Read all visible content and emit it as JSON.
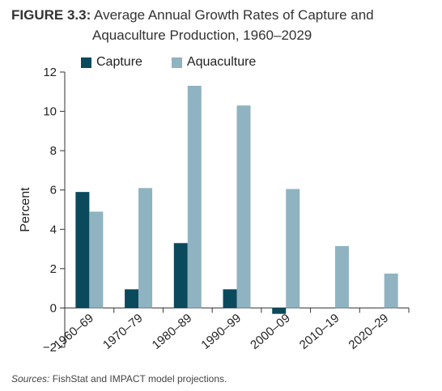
{
  "figure_label": "FIGURE 3.3:",
  "title_line1": "Average Annual Growth Rates of Capture and",
  "title_line2": "Aquaculture Production, 1960–2029",
  "source_label": "Sources:",
  "source_text": " FishStat and IMPACT model projections.",
  "chart_data": {
    "type": "bar",
    "categories": [
      "1960–69",
      "1970–79",
      "1980–89",
      "1990–99",
      "2000–09",
      "2010–19",
      "2020–29"
    ],
    "series": [
      {
        "name": "Capture",
        "color": "#0b4a5c",
        "values": [
          5.9,
          0.95,
          3.3,
          0.95,
          -0.3,
          null,
          null
        ]
      },
      {
        "name": "Aquaculture",
        "color": "#8fb3c1",
        "values": [
          4.9,
          6.1,
          11.3,
          10.3,
          6.05,
          3.15,
          1.75
        ]
      }
    ],
    "xlabel": "",
    "ylabel": "Percent",
    "ylim": [
      -2,
      12
    ],
    "yticks": [
      -2,
      0,
      2,
      4,
      6,
      8,
      10,
      12
    ],
    "grid": false,
    "legend": "top-left"
  }
}
